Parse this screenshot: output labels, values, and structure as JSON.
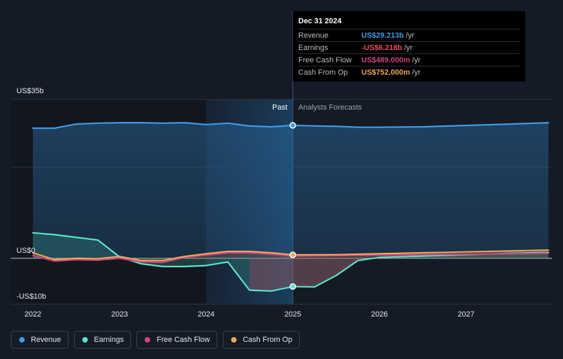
{
  "chart_data": {
    "type": "area",
    "y_top_label": "US$35b",
    "y_zero_label": "US$0",
    "y_bottom_label": "-US$10b",
    "ylim": [
      -10,
      35
    ],
    "xlim": [
      2021.8,
      2027.95
    ],
    "x_ticks": [
      "2022",
      "2023",
      "2024",
      "2025",
      "2026",
      "2027"
    ],
    "past_label": "Past",
    "forecast_label": "Analysts Forecasts",
    "divider_x": 2025.0,
    "past_highlight_start": 2024.0,
    "grid": true,
    "series": [
      {
        "name": "Revenue",
        "color": "#3f9ce8",
        "points": [
          [
            2022.0,
            28.6
          ],
          [
            2022.25,
            28.6
          ],
          [
            2022.5,
            29.5
          ],
          [
            2022.75,
            29.7
          ],
          [
            2023.0,
            29.8
          ],
          [
            2023.25,
            29.8
          ],
          [
            2023.5,
            29.7
          ],
          [
            2023.75,
            29.8
          ],
          [
            2024.0,
            29.4
          ],
          [
            2024.25,
            29.7
          ],
          [
            2024.5,
            29.1
          ],
          [
            2024.75,
            28.9
          ],
          [
            2025.0,
            29.213
          ],
          [
            2025.25,
            29.1
          ],
          [
            2025.5,
            29.0
          ],
          [
            2025.75,
            28.8
          ],
          [
            2026.0,
            28.8
          ],
          [
            2026.5,
            28.9
          ],
          [
            2027.0,
            29.2
          ],
          [
            2027.5,
            29.5
          ],
          [
            2027.95,
            29.8
          ]
        ]
      },
      {
        "name": "Earnings",
        "color": "#5ee3c8",
        "points": [
          [
            2022.0,
            5.6
          ],
          [
            2022.25,
            5.2
          ],
          [
            2022.5,
            4.6
          ],
          [
            2022.75,
            4.0
          ],
          [
            2023.0,
            0.3
          ],
          [
            2023.25,
            -1.2
          ],
          [
            2023.5,
            -1.8
          ],
          [
            2023.75,
            -1.8
          ],
          [
            2024.0,
            -1.6
          ],
          [
            2024.25,
            -0.8
          ],
          [
            2024.5,
            -7.0
          ],
          [
            2024.75,
            -7.2
          ],
          [
            2025.0,
            -6.218
          ],
          [
            2025.25,
            -6.3
          ],
          [
            2025.5,
            -3.8
          ],
          [
            2025.75,
            -0.5
          ],
          [
            2026.0,
            0.2
          ],
          [
            2026.5,
            0.5
          ],
          [
            2027.0,
            0.8
          ],
          [
            2027.5,
            1.1
          ],
          [
            2027.95,
            1.3
          ]
        ]
      },
      {
        "name": "Free Cash Flow",
        "color": "#d1437f",
        "points": [
          [
            2022.0,
            0.6
          ],
          [
            2022.25,
            -0.6
          ],
          [
            2022.5,
            -0.3
          ],
          [
            2022.75,
            -0.4
          ],
          [
            2023.0,
            0.0
          ],
          [
            2023.25,
            -0.8
          ],
          [
            2023.5,
            -0.9
          ],
          [
            2023.75,
            0.2
          ],
          [
            2024.0,
            0.7
          ],
          [
            2024.25,
            1.2
          ],
          [
            2024.5,
            1.2
          ],
          [
            2024.75,
            0.9
          ],
          [
            2025.0,
            0.489
          ],
          [
            2025.5,
            0.6
          ],
          [
            2026.0,
            0.7
          ],
          [
            2026.5,
            0.8
          ],
          [
            2027.0,
            0.9
          ],
          [
            2027.5,
            1.0
          ],
          [
            2027.95,
            1.1
          ]
        ]
      },
      {
        "name": "Cash From Op",
        "color": "#eda75a",
        "points": [
          [
            2022.0,
            1.2
          ],
          [
            2022.25,
            -0.3
          ],
          [
            2022.5,
            0.0
          ],
          [
            2022.75,
            -0.1
          ],
          [
            2023.0,
            0.4
          ],
          [
            2023.25,
            -0.5
          ],
          [
            2023.5,
            -0.5
          ],
          [
            2023.75,
            0.4
          ],
          [
            2024.0,
            1.0
          ],
          [
            2024.25,
            1.5
          ],
          [
            2024.5,
            1.5
          ],
          [
            2024.75,
            1.2
          ],
          [
            2025.0,
            0.752
          ],
          [
            2025.5,
            0.8
          ],
          [
            2026.0,
            1.0
          ],
          [
            2026.5,
            1.2
          ],
          [
            2027.0,
            1.4
          ],
          [
            2027.5,
            1.6
          ],
          [
            2027.95,
            1.8
          ]
        ]
      }
    ],
    "markers": [
      {
        "series": "Revenue",
        "x": 2025.0,
        "y": 29.213
      },
      {
        "series": "Earnings",
        "x": 2025.0,
        "y": -6.218
      },
      {
        "series": "Cash From Op",
        "x": 2025.0,
        "y": 0.752
      }
    ]
  },
  "tooltip": {
    "date": "Dec 31 2024",
    "rows": [
      {
        "label": "Revenue",
        "value": "US$29.213b",
        "unit": "/yr",
        "color": "#3f9ce8"
      },
      {
        "label": "Earnings",
        "value": "-US$6.218b",
        "unit": "/yr",
        "color": "#ef4b5c"
      },
      {
        "label": "Free Cash Flow",
        "value": "US$489.000m",
        "unit": "/yr",
        "color": "#d1437f"
      },
      {
        "label": "Cash From Op",
        "value": "US$752.000m",
        "unit": "/yr",
        "color": "#eda75a"
      }
    ]
  },
  "legend": [
    {
      "label": "Revenue",
      "color": "#3f9ce8"
    },
    {
      "label": "Earnings",
      "color": "#5ee3c8"
    },
    {
      "label": "Free Cash Flow",
      "color": "#d1437f"
    },
    {
      "label": "Cash From Op",
      "color": "#eda75a"
    }
  ]
}
